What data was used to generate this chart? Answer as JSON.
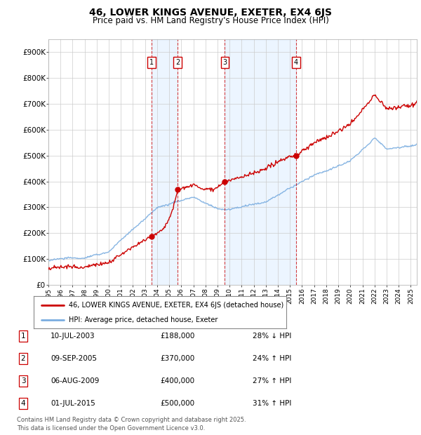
{
  "title": "46, LOWER KINGS AVENUE, EXETER, EX4 6JS",
  "subtitle": "Price paid vs. HM Land Registry's House Price Index (HPI)",
  "ylabel_ticks": [
    "£0",
    "£100K",
    "£200K",
    "£300K",
    "£400K",
    "£500K",
    "£600K",
    "£700K",
    "£800K",
    "£900K"
  ],
  "ylim": [
    0,
    950000
  ],
  "yticks": [
    0,
    100000,
    200000,
    300000,
    400000,
    500000,
    600000,
    700000,
    800000,
    900000
  ],
  "legend_line1": "46, LOWER KINGS AVENUE, EXETER, EX4 6JS (detached house)",
  "legend_line2": "HPI: Average price, detached house, Exeter",
  "line_color_red": "#cc0000",
  "line_color_blue": "#7aade0",
  "transactions": [
    {
      "num": 1,
      "date": "10-JUL-2003",
      "price": 188000,
      "pct": "28%",
      "dir": "↓",
      "x_year": 2003.53
    },
    {
      "num": 2,
      "date": "09-SEP-2005",
      "price": 370000,
      "pct": "24%",
      "dir": "↑",
      "x_year": 2005.69
    },
    {
      "num": 3,
      "date": "06-AUG-2009",
      "price": 400000,
      "pct": "27%",
      "dir": "↑",
      "x_year": 2009.6
    },
    {
      "num": 4,
      "date": "01-JUL-2015",
      "price": 500000,
      "pct": "31%",
      "dir": "↑",
      "x_year": 2015.5
    }
  ],
  "footer": "Contains HM Land Registry data © Crown copyright and database right 2025.\nThis data is licensed under the Open Government Licence v3.0.",
  "background_color": "#ffffff",
  "grid_color": "#cccccc",
  "shade_color": "#ddeeff",
  "xlim_start": 1995.0,
  "xlim_end": 2025.5
}
